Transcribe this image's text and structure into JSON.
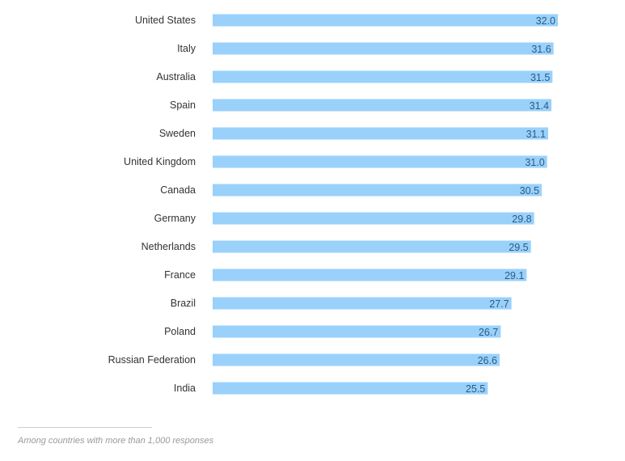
{
  "chart_data": {
    "type": "bar",
    "orientation": "horizontal",
    "categories": [
      "United States",
      "Italy",
      "Australia",
      "Spain",
      "Sweden",
      "United Kingdom",
      "Canada",
      "Germany",
      "Netherlands",
      "France",
      "Brazil",
      "Poland",
      "Russian Federation",
      "India"
    ],
    "values": [
      32.0,
      31.6,
      31.5,
      31.4,
      31.1,
      31.0,
      30.5,
      29.8,
      29.5,
      29.1,
      27.7,
      26.7,
      26.6,
      25.5
    ],
    "value_labels": [
      "32.0",
      "31.6",
      "31.5",
      "31.4",
      "31.1",
      "31.0",
      "30.5",
      "29.8",
      "29.5",
      "29.1",
      "27.7",
      "26.7",
      "26.6",
      "25.5"
    ],
    "title": "",
    "xlabel": "",
    "ylabel": "",
    "grid": false,
    "bar_color": "#99d1fb",
    "value_label_color": "#2a5a86",
    "category_label_color": "#333333"
  },
  "footnote": "Among countries with more than 1,000 responses"
}
